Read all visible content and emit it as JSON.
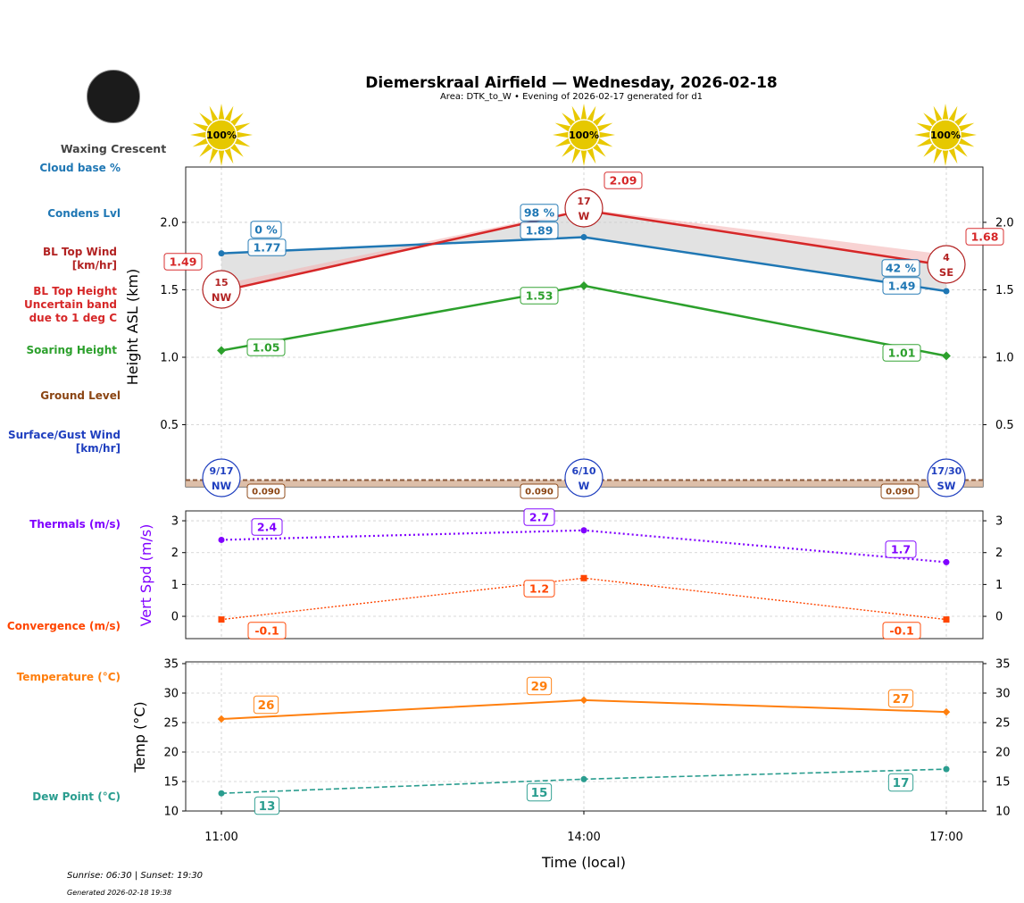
{
  "header": {
    "title": "Diemerskraal Airfield — Wednesday, 2026-02-18",
    "subtitle": "Area: DTK_to_W • Evening of 2026-02-17 generated for d1",
    "moon_phase": "Waxing Crescent"
  },
  "side_labels": {
    "cloud_base": "Cloud base %",
    "condens": "Condens Lvl",
    "bl_wind": "BL Top Wind\n[km/hr]",
    "bl_top": "BL Top Height\nUncertain band\ndue to 1 deg C",
    "soaring": "Soaring Height",
    "ground": "Ground Level",
    "surface_wind": "Surface/Gust Wind\n[km/hr]",
    "thermals": "Thermals (m/s)",
    "convergence": "Convergence (m/s)",
    "temperature": "Temperature (°C)",
    "dew_point": "Dew Point (°C)"
  },
  "footer": {
    "sun": "Sunrise: 06:30 | Sunset: 19:30",
    "generated": "Generated 2026-02-18 19:38"
  },
  "colors": {
    "condens": "#1f77b4",
    "bl_top": "#d62728",
    "bl_wind": "#b22222",
    "soaring": "#2ca02c",
    "ground": "#8b4513",
    "surface_wind": "#1f3fbf",
    "thermals": "#8000ff",
    "convergence": "#ff4500",
    "temperature": "#ff7f0e",
    "dew_point": "#2a9d8f",
    "sun": "#e8c800"
  },
  "chart_data": [
    {
      "type": "line",
      "ylabel": "Height ASL (km)",
      "ylim": [
        0.04,
        2.41
      ],
      "yticks": [
        "0.5",
        "1.0",
        "1.5",
        "2.0"
      ],
      "x": [
        "11:00",
        "14:00",
        "17:00"
      ],
      "sun_percent": [
        "100%",
        "100%",
        "100%"
      ],
      "series": {
        "condens": {
          "values": [
            1.77,
            1.89,
            1.49
          ],
          "labels": [
            "1.77",
            "1.89",
            "1.49"
          ]
        },
        "cloud_base_pct": {
          "labels": [
            "0 %",
            "98 %",
            "42 %"
          ]
        },
        "bl_top": {
          "values": [
            1.49,
            2.09,
            1.68
          ],
          "labels": [
            "1.49",
            "2.09",
            "1.68"
          ],
          "band_upper": [
            1.54,
            2.1,
            1.76
          ]
        },
        "soaring": {
          "values": [
            1.05,
            1.53,
            1.01
          ],
          "labels": [
            "1.05",
            "1.53",
            "1.01"
          ]
        },
        "ground": {
          "values": [
            0.09,
            0.09,
            0.09
          ],
          "labels": [
            "0.090",
            "0.090",
            "0.090"
          ]
        }
      },
      "bl_wind": [
        {
          "speed": "15",
          "dir": "NW"
        },
        {
          "speed": "17",
          "dir": "W"
        },
        {
          "speed": "4",
          "dir": "SE"
        }
      ],
      "surface_wind": [
        {
          "speed": "9/17",
          "dir": "NW"
        },
        {
          "speed": "6/10",
          "dir": "W"
        },
        {
          "speed": "17/30",
          "dir": "SW"
        }
      ]
    },
    {
      "type": "line",
      "ylabel": "Vert Spd (m/s)",
      "ylim": [
        -0.7,
        3.31
      ],
      "yticks": [
        "0",
        "1",
        "2",
        "3"
      ],
      "series": {
        "thermals": {
          "values": [
            2.4,
            2.7,
            1.7
          ],
          "labels": [
            "2.4",
            "2.7",
            "1.7"
          ]
        },
        "convergence": {
          "values": [
            -0.1,
            1.2,
            -0.1
          ],
          "labels": [
            "-0.1",
            "1.2",
            "-0.1"
          ]
        }
      }
    },
    {
      "type": "line",
      "ylabel": "Temp (°C)",
      "xlabel": "Time (local)",
      "ylim": [
        10,
        35.3
      ],
      "yticks": [
        "10",
        "15",
        "20",
        "25",
        "30",
        "35"
      ],
      "xticks": [
        "11:00",
        "14:00",
        "17:00"
      ],
      "series": {
        "temperature": {
          "values": [
            25.6,
            28.8,
            26.8
          ],
          "labels": [
            "26",
            "29",
            "27"
          ]
        },
        "dew_point": {
          "values": [
            13.0,
            15.4,
            17.1
          ],
          "labels": [
            "13",
            "15",
            "17"
          ]
        }
      }
    }
  ]
}
